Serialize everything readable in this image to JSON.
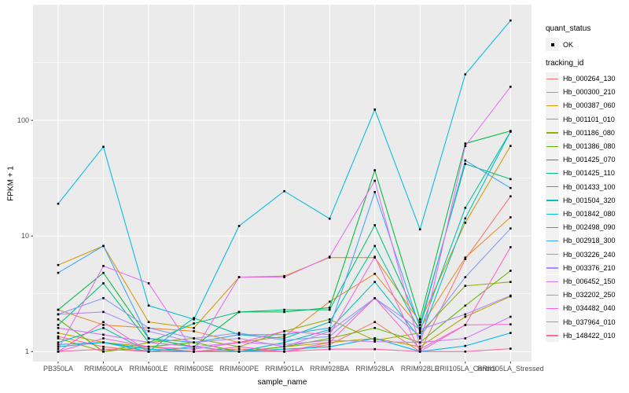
{
  "figure": {
    "panel_bg": "#EBEBEB",
    "grid_major": "#FFFFFF",
    "grid_minor": "#F5F5F5",
    "tick_color": "#333333",
    "axis_text_color": "#4D4D4D"
  },
  "legend": {
    "quant_title": "quant_status",
    "quant_items": [
      {
        "label": "OK",
        "marker": "black-square"
      }
    ],
    "tracking_title": "tracking_id"
  },
  "chart_data": {
    "type": "line",
    "title": "",
    "xlabel": "sample_name",
    "ylabel": "FPKM + 1",
    "y_scale": "log10",
    "y_ticks": [
      1,
      10,
      100
    ],
    "y_minor_ticks": [
      3.162,
      31.62,
      316.2
    ],
    "ylim": [
      0.82,
      1000
    ],
    "grid": true,
    "legend_position": "right",
    "point_marker": {
      "shape": "square",
      "color": "#000000",
      "size": 2.6
    },
    "categories": [
      "PB350LA",
      "RRIM600LA",
      "RRIM600LE",
      "RRIM600SE",
      "RRIM600PE",
      "RRIM901LA",
      "RRIM928BA",
      "RRIM928LA",
      "RRIM928LE",
      "RRII105LA_Control",
      "RRII105LA_Stressed"
    ],
    "series": [
      {
        "name": "Hb_000264_130",
        "color": "#F8766D",
        "values": [
          1.35,
          1.1,
          1.0,
          1.0,
          1.05,
          1.0,
          1.15,
          1.8,
          1.0,
          6.3,
          22
        ]
      },
      {
        "name": "Hb_000300_210",
        "color": "#E98A2C",
        "values": [
          2.3,
          1.7,
          1.6,
          1.5,
          1.2,
          1.35,
          2.7,
          4.7,
          1.6,
          6.5,
          14.5
        ]
      },
      {
        "name": "Hb_000387_060",
        "color": "#D49A00",
        "values": [
          5.6,
          8.2,
          1.8,
          1.6,
          4.4,
          4.5,
          6.5,
          6.5,
          1.8,
          13,
          60
        ]
      },
      {
        "name": "Hb_001101_010",
        "color": "#B8A500",
        "values": [
          1.45,
          1.2,
          1.1,
          1.0,
          1.0,
          1.1,
          1.2,
          1.3,
          1.1,
          2.0,
          3.0
        ]
      },
      {
        "name": "Hb_001186_080",
        "color": "#94AF00",
        "values": [
          1.3,
          1.0,
          1.2,
          1.3,
          1.1,
          1.5,
          1.9,
          1.25,
          1.45,
          3.7,
          4.0
        ]
      },
      {
        "name": "Hb_001386_080",
        "color": "#61B600",
        "values": [
          1.9,
          1.0,
          1.1,
          1.2,
          1.0,
          1.1,
          1.3,
          1.6,
          1.2,
          2.5,
          5.0
        ]
      },
      {
        "name": "Hb_001425_070",
        "color": "#00BB3F",
        "values": [
          2.3,
          4.8,
          1.3,
          1.1,
          2.2,
          2.2,
          2.4,
          37,
          1.9,
          63,
          81
        ]
      },
      {
        "name": "Hb_001425_110",
        "color": "#00BF77",
        "values": [
          1.7,
          3.9,
          1.2,
          1.75,
          2.2,
          2.3,
          2.3,
          12.4,
          1.7,
          42,
          31
        ]
      },
      {
        "name": "Hb_001433_100",
        "color": "#00C1A0",
        "values": [
          1.2,
          1.6,
          1.0,
          1.95,
          1.4,
          1.3,
          1.8,
          8.2,
          1.5,
          17.5,
          80
        ]
      },
      {
        "name": "Hb_001504_320",
        "color": "#00C0C2",
        "values": [
          1.1,
          1.2,
          1.0,
          1.1,
          1.0,
          1.2,
          1.55,
          4.0,
          1.3,
          14.2,
          80
        ]
      },
      {
        "name": "Hb_001842_080",
        "color": "#00BCDD",
        "values": [
          19,
          59,
          2.5,
          1.9,
          12.2,
          24.4,
          14.1,
          124,
          11.4,
          250,
          730
        ]
      },
      {
        "name": "Hb_002498_090",
        "color": "#00B3F2",
        "values": [
          1.15,
          1.2,
          1.05,
          1.0,
          1.0,
          1.05,
          1.1,
          1.3,
          1.0,
          1.12,
          1.45
        ]
      },
      {
        "name": "Hb_002918_300",
        "color": "#3FA4FF",
        "values": [
          4.8,
          8.2,
          1.3,
          1.2,
          1.4,
          1.4,
          1.6,
          24,
          1.6,
          45,
          26
        ]
      },
      {
        "name": "Hb_003226_240",
        "color": "#8596FF",
        "values": [
          2.1,
          2.9,
          1.6,
          1.3,
          1.45,
          1.25,
          1.35,
          2.9,
          1.35,
          4.4,
          11.6
        ]
      },
      {
        "name": "Hb_003376_210",
        "color": "#AE87FF",
        "values": [
          2.1,
          2.2,
          1.5,
          1.2,
          1.3,
          1.1,
          1.5,
          2.9,
          1.55,
          2.1,
          3.05
        ]
      },
      {
        "name": "Hb_006452_150",
        "color": "#CF78FF",
        "values": [
          1.6,
          1.4,
          1.2,
          1.1,
          1.2,
          1.15,
          1.25,
          1.22,
          1.2,
          1.3,
          2.0
        ]
      },
      {
        "name": "Hb_032202_250",
        "color": "#E66DF2",
        "values": [
          1.05,
          5.5,
          3.9,
          1.0,
          4.4,
          4.4,
          6.6,
          30,
          1.1,
          60,
          195
        ]
      },
      {
        "name": "Hb_034482_040",
        "color": "#F763DF",
        "values": [
          1.0,
          1.3,
          1.1,
          1.05,
          1.2,
          1.5,
          1.4,
          6.6,
          1.0,
          1.7,
          1.72
        ]
      },
      {
        "name": "Hb_037964_010",
        "color": "#FF61C7",
        "values": [
          1.0,
          1.8,
          1.0,
          1.0,
          1.1,
          1.0,
          1.2,
          2.9,
          1.05,
          1.7,
          8.0
        ]
      },
      {
        "name": "Hb_148422_010",
        "color": "#FF68A5",
        "values": [
          1.0,
          1.05,
          1.0,
          1.0,
          1.0,
          1.0,
          1.05,
          1.05,
          1.0,
          1.0,
          1.06
        ]
      }
    ]
  }
}
